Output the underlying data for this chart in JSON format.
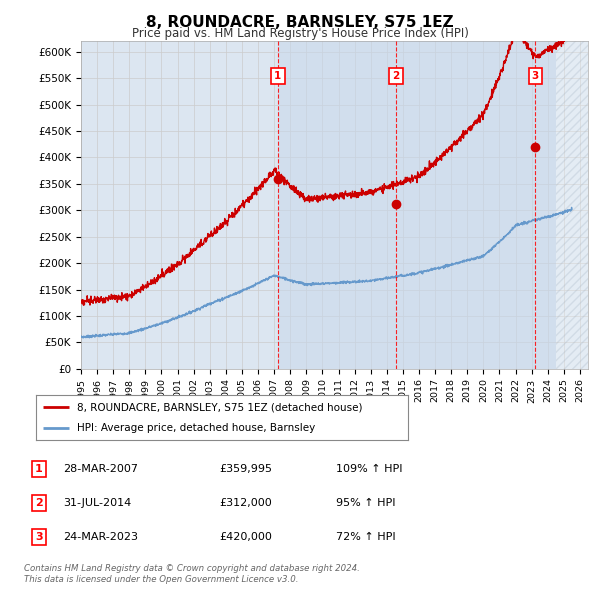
{
  "title": "8, ROUNDACRE, BARNSLEY, S75 1EZ",
  "subtitle": "Price paid vs. HM Land Registry's House Price Index (HPI)",
  "ylim": [
    0,
    620000
  ],
  "yticks": [
    0,
    50000,
    100000,
    150000,
    200000,
    250000,
    300000,
    350000,
    400000,
    450000,
    500000,
    550000,
    600000
  ],
  "ytick_labels": [
    "£0",
    "£50K",
    "£100K",
    "£150K",
    "£200K",
    "£250K",
    "£300K",
    "£350K",
    "£400K",
    "£450K",
    "£500K",
    "£550K",
    "£600K"
  ],
  "xlim_start": 1995.0,
  "xlim_end": 2026.5,
  "sale1_x": 2007.23,
  "sale1_y": 359995,
  "sale1_date": "28-MAR-2007",
  "sale1_price": "£359,995",
  "sale1_hpi": "109% ↑ HPI",
  "sale2_x": 2014.58,
  "sale2_y": 312000,
  "sale2_date": "31-JUL-2014",
  "sale2_price": "£312,000",
  "sale2_hpi": "95% ↑ HPI",
  "sale3_x": 2023.23,
  "sale3_y": 420000,
  "sale3_date": "24-MAR-2023",
  "sale3_price": "£420,000",
  "sale3_hpi": "72% ↑ HPI",
  "red_line_color": "#cc0000",
  "blue_line_color": "#6699cc",
  "dot_color": "#cc0000",
  "grid_color": "#cccccc",
  "background_color": "#dce6f1",
  "shade1_color": "#dce6f1",
  "shade2_color": "#c8d8eb",
  "hatch_start": 2024.5,
  "legend_label_red": "8, ROUNDACRE, BARNSLEY, S75 1EZ (detached house)",
  "legend_label_blue": "HPI: Average price, detached house, Barnsley",
  "footer1": "Contains HM Land Registry data © Crown copyright and database right 2024.",
  "footer2": "This data is licensed under the Open Government Licence v3.0."
}
